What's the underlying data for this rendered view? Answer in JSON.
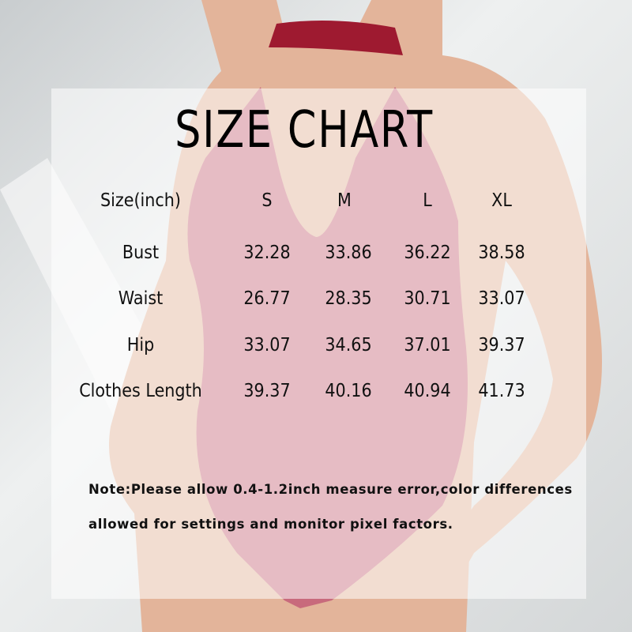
{
  "title": "SIZE CHART",
  "table": {
    "headers": [
      "Size(inch)",
      "S",
      "M",
      "L",
      "XL"
    ],
    "rows": [
      {
        "label": "Bust",
        "values": [
          "32.28",
          "33.86",
          "36.22",
          "38.58"
        ]
      },
      {
        "label": "Waist",
        "values": [
          "26.77",
          "28.35",
          "30.71",
          "33.07"
        ]
      },
      {
        "label": "Hip",
        "values": [
          "33.07",
          "34.65",
          "37.01",
          "39.37"
        ]
      },
      {
        "label": "Clothes Length",
        "values": [
          "39.37",
          "40.16",
          "40.94",
          "41.73"
        ]
      }
    ]
  },
  "note": {
    "line1": "Note:Please allow 0.4-1.2inch measure error,color differences",
    "line2": "allowed for settings and monitor pixel factors."
  },
  "colors": {
    "bodysuit": "#c86a7c",
    "choker": "#9e1a30",
    "skin": "#e3b49a",
    "background": "#dfe1e2"
  }
}
